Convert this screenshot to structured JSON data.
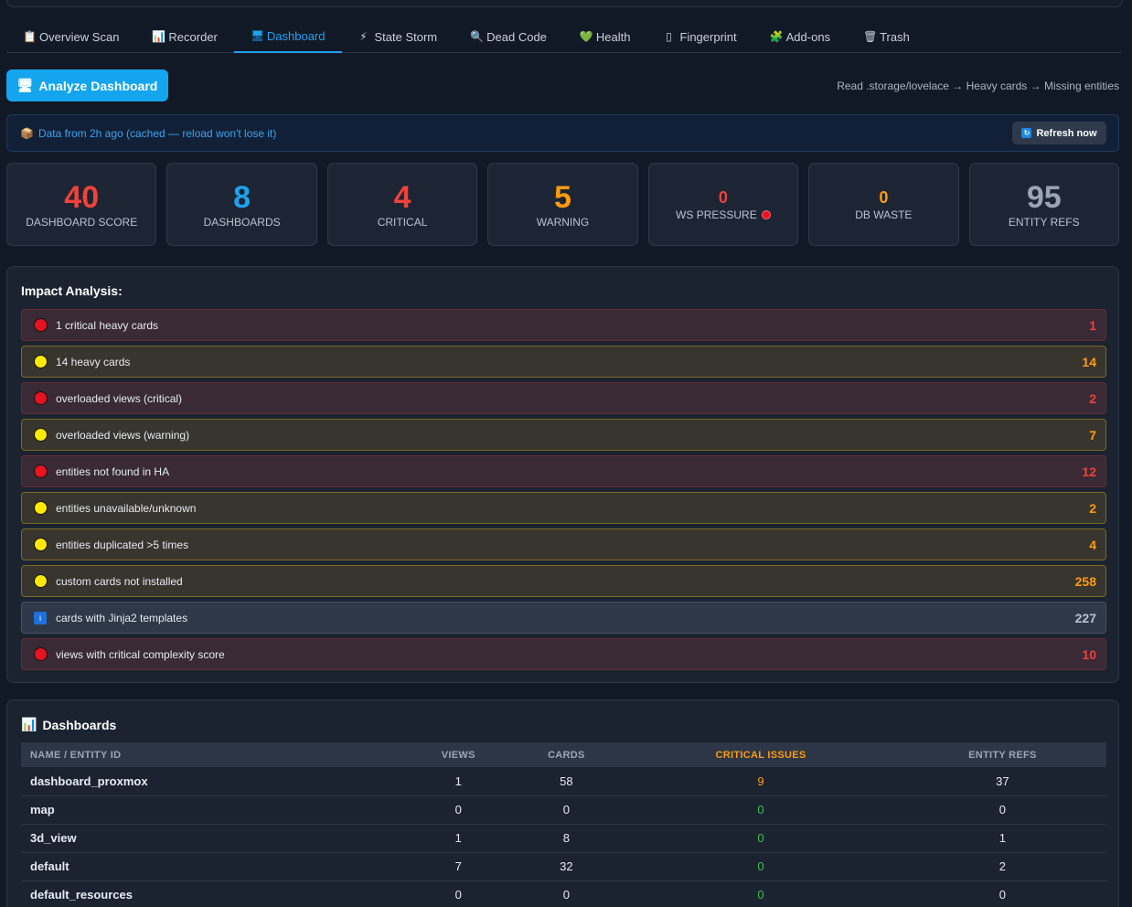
{
  "tabs": [
    {
      "icon": "📋",
      "label": "Overview Scan",
      "active": false,
      "icon_name": "clipboard-icon"
    },
    {
      "icon": "📊",
      "label": "Recorder",
      "active": false,
      "icon_name": "chart-icon"
    },
    {
      "icon": "🖥",
      "label": "Dashboard",
      "active": true,
      "icon_name": "monitor-icon"
    },
    {
      "icon": "⚡",
      "label": "State Storm",
      "active": false,
      "icon_name": "lightning-icon"
    },
    {
      "icon": "🔍",
      "label": "Dead Code",
      "active": false,
      "icon_name": "magnifier-icon"
    },
    {
      "icon": "💚",
      "label": "Health",
      "active": false,
      "icon_name": "heart-icon"
    },
    {
      "icon": "▯",
      "label": "Fingerprint",
      "active": false,
      "icon_name": "fingerprint-icon"
    },
    {
      "icon": "🧩",
      "label": "Add-ons",
      "active": false,
      "icon_name": "puzzle-icon"
    },
    {
      "icon": "🗑",
      "label": "Trash",
      "active": false,
      "icon_name": "trash-icon"
    }
  ],
  "toolbar": {
    "analyze_label": "Analyze Dashboard",
    "hint": "Read .storage/lovelace → Heavy cards → Missing entities"
  },
  "cache": {
    "message": "Data from 2h ago (cached — reload won't lose it)",
    "refresh_label": "Refresh now"
  },
  "stats": [
    {
      "value": "40",
      "label": "DASHBOARD SCORE",
      "color": "#f0423a"
    },
    {
      "value": "8",
      "label": "DASHBOARDS",
      "color": "#1ea2f0"
    },
    {
      "value": "4",
      "label": "CRITICAL",
      "color": "#f0423a"
    },
    {
      "value": "5",
      "label": "WARNING",
      "color": "#ff9b0f"
    },
    {
      "value": "0",
      "label": "WS PRESSURE",
      "color": "#f0423a",
      "dot": true
    },
    {
      "value": "0",
      "label": "DB WASTE",
      "color": "#ff9b0f"
    },
    {
      "value": "95",
      "label": "ENTITY REFS",
      "color": "#9aa4b2"
    }
  ],
  "impact": {
    "title": "Impact Analysis:",
    "rows": [
      {
        "level": "critical",
        "text": "1 critical heavy cards",
        "count": "1"
      },
      {
        "level": "warning",
        "text": "14 heavy cards",
        "count": "14"
      },
      {
        "level": "critical",
        "text": "overloaded views (critical)",
        "count": "2"
      },
      {
        "level": "warning",
        "text": "overloaded views (warning)",
        "count": "7"
      },
      {
        "level": "critical",
        "text": "entities not found in HA",
        "count": "12"
      },
      {
        "level": "warning",
        "text": "entities unavailable/unknown",
        "count": "2"
      },
      {
        "level": "warning",
        "text": "entities duplicated >5 times",
        "count": "4"
      },
      {
        "level": "warning",
        "text": "custom cards not installed",
        "count": "258"
      },
      {
        "level": "info",
        "text": "cards with Jinja2 templates",
        "count": "227"
      },
      {
        "level": "critical",
        "text": "views with critical complexity score",
        "count": "10"
      }
    ]
  },
  "dashboards": {
    "title": "Dashboards",
    "columns": [
      "NAME / ENTITY ID",
      "VIEWS",
      "CARDS",
      "CRITICAL ISSUES",
      "ENTITY REFS"
    ],
    "rows": [
      {
        "name": "dashboard_proxmox",
        "views": "1",
        "cards": "58",
        "critical": "9",
        "refs": "37"
      },
      {
        "name": "map",
        "views": "0",
        "cards": "0",
        "critical": "0",
        "refs": "0"
      },
      {
        "name": "3d_view",
        "views": "1",
        "cards": "8",
        "critical": "0",
        "refs": "1"
      },
      {
        "name": "default",
        "views": "7",
        "cards": "32",
        "critical": "0",
        "refs": "2"
      },
      {
        "name": "default_resources",
        "views": "0",
        "cards": "0",
        "critical": "0",
        "refs": "0"
      }
    ]
  }
}
